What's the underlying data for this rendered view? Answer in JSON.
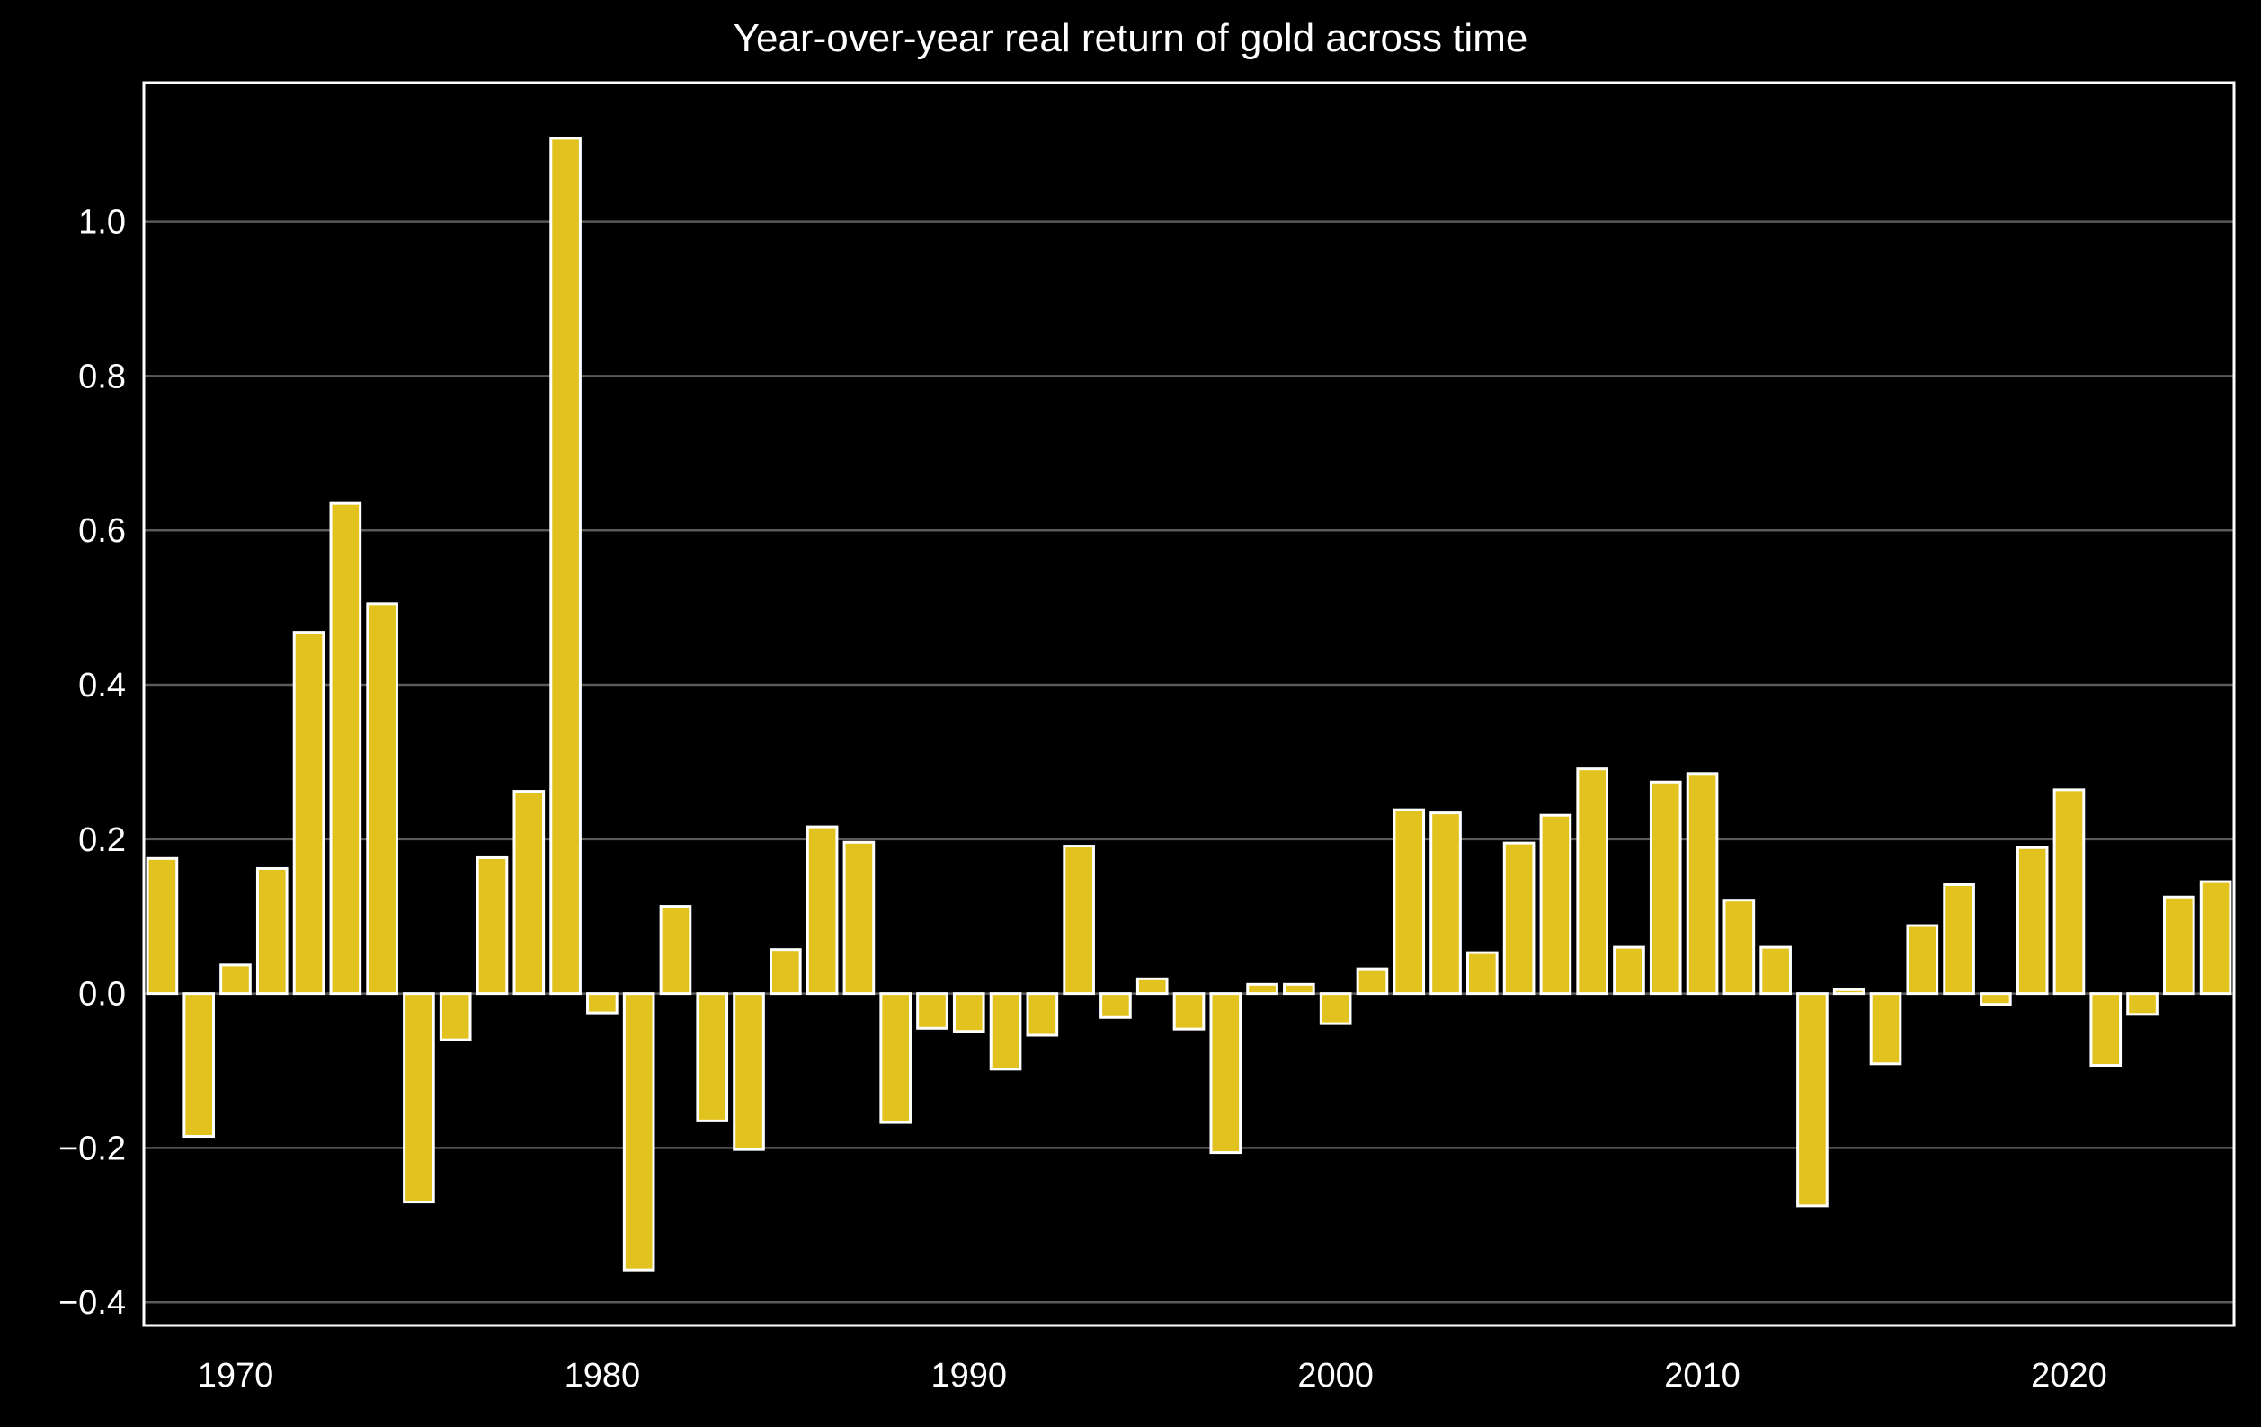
{
  "colors": {
    "background": "#000000",
    "bar_fill": "#e1c21e",
    "bar_edge": "#ffffff",
    "grid": "#5a5a5a",
    "frame": "#ffffff",
    "text": "#ffffff"
  },
  "chart_data": {
    "type": "bar",
    "title": "Year-over-year real return of gold across time",
    "xlabel": "",
    "ylabel": "",
    "x": [
      1968,
      1969,
      1970,
      1971,
      1972,
      1973,
      1974,
      1975,
      1976,
      1977,
      1978,
      1979,
      1980,
      1981,
      1982,
      1983,
      1984,
      1985,
      1986,
      1987,
      1988,
      1989,
      1990,
      1991,
      1992,
      1993,
      1994,
      1995,
      1996,
      1997,
      1998,
      1999,
      2000,
      2001,
      2002,
      2003,
      2004,
      2005,
      2006,
      2007,
      2008,
      2009,
      2010,
      2011,
      2012,
      2013,
      2014,
      2015,
      2016,
      2017,
      2018,
      2019,
      2020,
      2021,
      2022,
      2023,
      2024
    ],
    "values": [
      0.175,
      -0.185,
      0.037,
      0.162,
      0.468,
      0.635,
      0.505,
      -0.27,
      -0.06,
      0.176,
      0.262,
      1.108,
      -0.025,
      -0.358,
      0.113,
      -0.165,
      -0.202,
      0.057,
      0.216,
      0.196,
      -0.167,
      -0.045,
      -0.049,
      -0.098,
      -0.054,
      0.191,
      -0.031,
      0.019,
      -0.046,
      -0.206,
      0.012,
      0.012,
      -0.039,
      0.032,
      0.238,
      0.234,
      0.053,
      0.195,
      0.231,
      0.291,
      0.06,
      0.274,
      0.285,
      0.121,
      0.06,
      -0.275,
      0.005,
      -0.091,
      0.088,
      0.141,
      -0.014,
      0.189,
      0.264,
      -0.093,
      -0.027,
      0.125,
      0.145
    ],
    "xlim": [
      1967.5,
      2024.5
    ],
    "ylim": [
      -0.43,
      1.18
    ],
    "x_ticks": [
      1970,
      1980,
      1990,
      2000,
      2010,
      2020
    ],
    "x_tick_labels": [
      "1970",
      "1980",
      "1990",
      "2000",
      "2010",
      "2020"
    ],
    "y_ticks": [
      -0.4,
      -0.2,
      0.0,
      0.2,
      0.4,
      0.6,
      0.8,
      1.0
    ],
    "y_tick_labels": [
      "−0.4",
      "−0.2",
      "0.0",
      "0.2",
      "0.4",
      "0.6",
      "0.8",
      "1.0"
    ],
    "grid": "horizontal",
    "legend": "none"
  }
}
